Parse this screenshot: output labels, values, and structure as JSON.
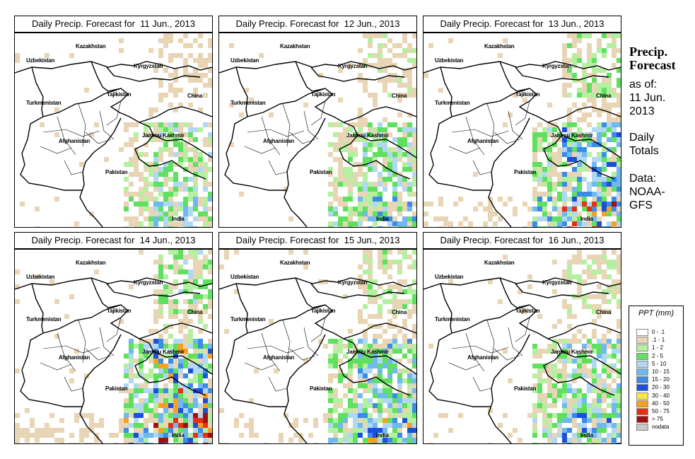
{
  "panels": [
    {
      "title": "Daily Precip. Forecast for  11 Jun., 2013",
      "seed": 11,
      "intensity": 0.8
    },
    {
      "title": "Daily Precip. Forecast for  12 Jun., 2013",
      "seed": 12,
      "intensity": 0.9
    },
    {
      "title": "Daily Precip. Forecast for  13 Jun., 2013",
      "seed": 13,
      "intensity": 1.2
    },
    {
      "title": "Daily Precip. Forecast for  14 Jun., 2013",
      "seed": 14,
      "intensity": 1.4
    },
    {
      "title": "Daily Precip. Forecast for  15 Jun., 2013",
      "seed": 15,
      "intensity": 1.1
    },
    {
      "title": "Daily Precip. Forecast for  16 Jun., 2013",
      "seed": 16,
      "intensity": 1.0
    }
  ],
  "map_labels": {
    "kazakhstan": "Kazakhstan",
    "uzbekistan": "Uzbekistan",
    "kyrgyzstan": "Kyrgyzstan",
    "tajikistan": "Tajikistan",
    "china": "China",
    "turkmenistan": "Turkmenistan",
    "jammu_kashmir": "Jammu Kashmir",
    "afghanistan": "Afghanistan",
    "pakistan": "Pakistan",
    "india": "India"
  },
  "sidebar": {
    "title_line1": "Precip.",
    "title_line2": "Forecast",
    "as_of": "as of:",
    "date_line1": "11 Jun.",
    "date_line2": "2013",
    "daily_line1": "Daily",
    "daily_line2": "Totals",
    "data_line1": "Data:",
    "data_line2": "NOAA-",
    "data_line3": "GFS"
  },
  "legend": {
    "title": "PPT (mm)",
    "items": [
      {
        "label": "0 - .1",
        "color": "#ffffff"
      },
      {
        "label": ".1 - 1",
        "color": "#e8d5b5"
      },
      {
        "label": "1 - 2",
        "color": "#b4f0a0"
      },
      {
        "label": "2 - 5",
        "color": "#5fe05f"
      },
      {
        "label": "5 - 10",
        "color": "#b0d8f5"
      },
      {
        "label": "10 - 15",
        "color": "#70b8f0"
      },
      {
        "label": "15 - 20",
        "color": "#3a8ce8"
      },
      {
        "label": "20 - 30",
        "color": "#1c50d8"
      },
      {
        "label": "30 - 40",
        "color": "#f8e840"
      },
      {
        "label": "40 - 50",
        "color": "#f8a020"
      },
      {
        "label": "50 - 75",
        "color": "#e83010"
      },
      {
        "label": "> 75",
        "color": "#a01010"
      },
      {
        "label": "nodata",
        "color": "#c8c8c8"
      }
    ]
  }
}
